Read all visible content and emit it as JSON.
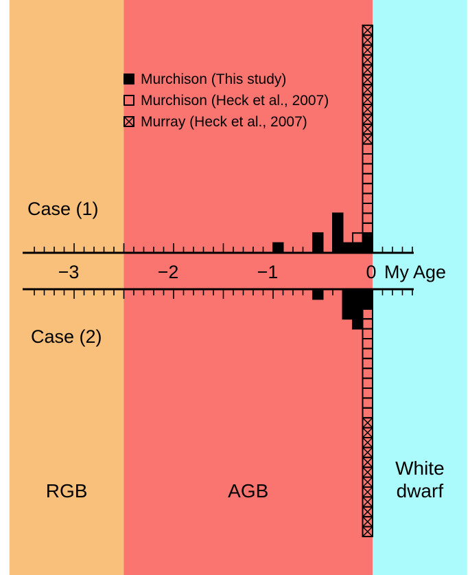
{
  "colors": {
    "rgb": "#f8c07a",
    "agb": "#fa7570",
    "white_dwarf": "#abfbfd",
    "ink": "#000000"
  },
  "chart_data": {
    "type": "bar",
    "xlabel": "My Age",
    "xlim": [
      -3.4,
      0.4
    ],
    "x_ticks": [
      -3,
      -2,
      -1,
      0
    ],
    "x_tick_labels": [
      "−3",
      "−2",
      "−1",
      "0"
    ],
    "bin_width": 0.1,
    "regions": [
      {
        "name": "RGB",
        "label": [
          "RGB"
        ],
        "from": -3.65,
        "to": -2.5
      },
      {
        "name": "AGB",
        "label": [
          "AGB"
        ],
        "from": -2.5,
        "to": 0.0
      },
      {
        "name": "White dwarf",
        "label": [
          "White",
          "dwarf"
        ],
        "from": 0.0,
        "to": 0.95
      }
    ],
    "legend": [
      {
        "symbol": "filled",
        "label": "Murchison (This study)"
      },
      {
        "symbol": "open",
        "label": "Murchison (Heck et al., 2007)"
      },
      {
        "symbol": "crossed",
        "label": "Murray (Heck et al., 2007)"
      }
    ],
    "panels": [
      {
        "name": "Case (1)",
        "label": "Case (1)",
        "direction": "up",
        "stacks": [
          {
            "x0": -1.0,
            "x1": -0.9,
            "segments": [
              {
                "series": "filled",
                "count": 1
              }
            ]
          },
          {
            "x0": -0.6,
            "x1": -0.5,
            "segments": [
              {
                "series": "filled",
                "count": 2
              }
            ]
          },
          {
            "x0": -0.4,
            "x1": -0.3,
            "segments": [
              {
                "series": "filled",
                "count": 4
              }
            ]
          },
          {
            "x0": -0.3,
            "x1": -0.2,
            "segments": [
              {
                "series": "filled",
                "count": 1
              }
            ]
          },
          {
            "x0": -0.2,
            "x1": -0.1,
            "segments": [
              {
                "series": "filled",
                "count": 1
              },
              {
                "series": "open",
                "count": 1
              }
            ]
          },
          {
            "x0": -0.1,
            "x1": 0.0,
            "segments": [
              {
                "series": "filled",
                "count": 2
              },
              {
                "series": "open",
                "count": 9
              },
              {
                "series": "crossed",
                "count": 12
              }
            ]
          }
        ]
      },
      {
        "name": "Case (2)",
        "label": "Case (2)",
        "direction": "down",
        "stacks": [
          {
            "x0": -0.6,
            "x1": -0.5,
            "segments": [
              {
                "series": "filled",
                "count": 1
              }
            ]
          },
          {
            "x0": -0.3,
            "x1": -0.2,
            "segments": [
              {
                "series": "filled",
                "count": 3
              }
            ]
          },
          {
            "x0": -0.2,
            "x1": -0.1,
            "segments": [
              {
                "series": "filled",
                "count": 4
              }
            ]
          },
          {
            "x0": -0.1,
            "x1": 0.0,
            "segments": [
              {
                "series": "filled",
                "count": 2
              },
              {
                "series": "open",
                "count": 11
              },
              {
                "series": "crossed",
                "count": 12
              }
            ]
          }
        ]
      }
    ]
  }
}
